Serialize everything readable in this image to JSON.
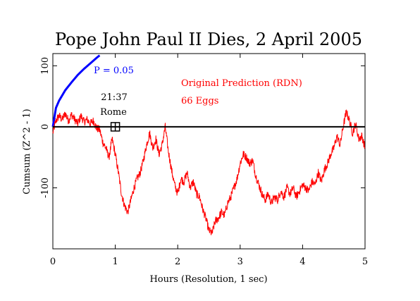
{
  "chart_data": {
    "type": "line",
    "title": "Pope John Paul II Dies, 2 April 2005",
    "xlabel": "Hours (Resolution, 1 sec)",
    "ylabel": "Cumsum (Z^2 - 1)",
    "xlim": [
      0,
      5
    ],
    "ylim": [
      -200,
      120
    ],
    "x_ticks": [
      0,
      1,
      2,
      3,
      4,
      5
    ],
    "y_ticks": [
      -100,
      0,
      100
    ],
    "grid": false,
    "colors": {
      "data": "#ff0000",
      "envelope": "#0000ff",
      "axes": "#000000",
      "event_marker": "#000000"
    },
    "envelope_label": "P = 0.05",
    "envelope_points": [
      [
        0,
        0
      ],
      [
        0.05,
        31
      ],
      [
        0.1,
        43
      ],
      [
        0.2,
        60
      ],
      [
        0.3,
        73
      ],
      [
        0.4,
        85
      ],
      [
        0.5,
        95
      ],
      [
        0.6,
        104
      ],
      [
        0.7,
        113
      ],
      [
        0.75,
        117
      ]
    ],
    "annotation_lines": [
      "Original Prediction (RDN)",
      "66 Eggs"
    ],
    "event_time_label": "21:37",
    "event_place_label": "Rome",
    "event_x": 1.0,
    "event_y": 0,
    "series": [
      {
        "values": [
          [
            0,
            -10
          ],
          [
            0.05,
            10
          ],
          [
            0.1,
            18
          ],
          [
            0.15,
            12
          ],
          [
            0.2,
            22
          ],
          [
            0.25,
            10
          ],
          [
            0.3,
            20
          ],
          [
            0.35,
            12
          ],
          [
            0.4,
            5
          ],
          [
            0.45,
            18
          ],
          [
            0.5,
            8
          ],
          [
            0.55,
            12
          ],
          [
            0.6,
            5
          ],
          [
            0.65,
            10
          ],
          [
            0.7,
            -2
          ],
          [
            0.75,
            -5
          ],
          [
            0.8,
            -25
          ],
          [
            0.85,
            -35
          ],
          [
            0.9,
            -50
          ],
          [
            0.95,
            -20
          ],
          [
            1.0,
            -45
          ],
          [
            1.05,
            -75
          ],
          [
            1.1,
            -110
          ],
          [
            1.15,
            -130
          ],
          [
            1.2,
            -140
          ],
          [
            1.25,
            -120
          ],
          [
            1.3,
            -100
          ],
          [
            1.35,
            -85
          ],
          [
            1.4,
            -75
          ],
          [
            1.45,
            -55
          ],
          [
            1.5,
            -30
          ],
          [
            1.55,
            -10
          ],
          [
            1.6,
            -35
          ],
          [
            1.65,
            -20
          ],
          [
            1.7,
            -45
          ],
          [
            1.75,
            -30
          ],
          [
            1.8,
            0
          ],
          [
            1.85,
            -40
          ],
          [
            1.9,
            -70
          ],
          [
            1.95,
            -95
          ],
          [
            2.0,
            -110
          ],
          [
            2.05,
            -85
          ],
          [
            2.1,
            -90
          ],
          [
            2.15,
            -75
          ],
          [
            2.2,
            -100
          ],
          [
            2.25,
            -90
          ],
          [
            2.3,
            -110
          ],
          [
            2.35,
            -115
          ],
          [
            2.4,
            -135
          ],
          [
            2.45,
            -150
          ],
          [
            2.5,
            -170
          ],
          [
            2.55,
            -175
          ],
          [
            2.6,
            -155
          ],
          [
            2.65,
            -150
          ],
          [
            2.7,
            -140
          ],
          [
            2.75,
            -145
          ],
          [
            2.8,
            -125
          ],
          [
            2.85,
            -115
          ],
          [
            2.9,
            -100
          ],
          [
            2.95,
            -85
          ],
          [
            3.0,
            -60
          ],
          [
            3.05,
            -45
          ],
          [
            3.1,
            -50
          ],
          [
            3.15,
            -60
          ],
          [
            3.2,
            -55
          ],
          [
            3.25,
            -80
          ],
          [
            3.3,
            -95
          ],
          [
            3.35,
            -110
          ],
          [
            3.4,
            -120
          ],
          [
            3.45,
            -110
          ],
          [
            3.5,
            -125
          ],
          [
            3.55,
            -115
          ],
          [
            3.6,
            -120
          ],
          [
            3.65,
            -105
          ],
          [
            3.7,
            -115
          ],
          [
            3.75,
            -100
          ],
          [
            3.8,
            -110
          ],
          [
            3.85,
            -100
          ],
          [
            3.9,
            -115
          ],
          [
            3.95,
            -105
          ],
          [
            4.0,
            -95
          ],
          [
            4.05,
            -100
          ],
          [
            4.1,
            -105
          ],
          [
            4.15,
            -90
          ],
          [
            4.2,
            -95
          ],
          [
            4.25,
            -75
          ],
          [
            4.3,
            -90
          ],
          [
            4.35,
            -70
          ],
          [
            4.4,
            -60
          ],
          [
            4.45,
            -45
          ],
          [
            4.5,
            -35
          ],
          [
            4.55,
            -15
          ],
          [
            4.6,
            -30
          ],
          [
            4.65,
            0
          ],
          [
            4.7,
            25
          ],
          [
            4.75,
            10
          ],
          [
            4.8,
            -10
          ],
          [
            4.85,
            5
          ],
          [
            4.9,
            -20
          ],
          [
            4.95,
            -15
          ],
          [
            5.0,
            -35
          ]
        ]
      }
    ]
  }
}
